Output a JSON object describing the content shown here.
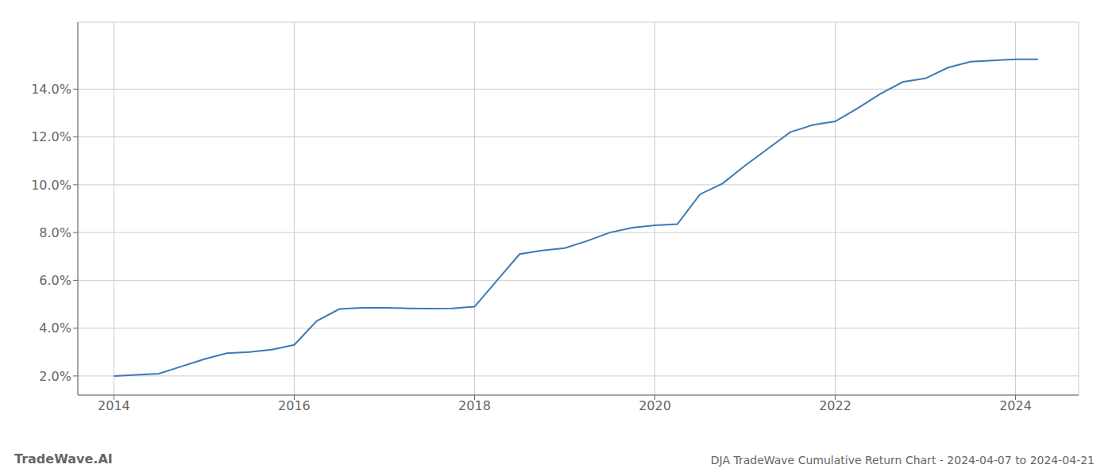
{
  "chart_data": {
    "type": "line",
    "title": "DJA TradeWave Cumulative Return Chart - 2024-04-07 to 2024-04-21",
    "annotations": [
      "TradeWave.AI"
    ],
    "x": [
      2014.0,
      2014.25,
      2014.5,
      2014.75,
      2015.0,
      2015.25,
      2015.5,
      2015.75,
      2016.0,
      2016.25,
      2016.5,
      2016.75,
      2017.0,
      2017.25,
      2017.5,
      2017.75,
      2018.0,
      2018.25,
      2018.5,
      2018.75,
      2019.0,
      2019.25,
      2019.5,
      2019.75,
      2020.0,
      2020.25,
      2020.5,
      2020.75,
      2021.0,
      2021.25,
      2021.5,
      2021.75,
      2022.0,
      2022.25,
      2022.5,
      2022.75,
      2023.0,
      2023.25,
      2023.5,
      2023.75,
      2024.0,
      2024.25
    ],
    "values": [
      2.0,
      2.05,
      2.1,
      2.4,
      2.7,
      2.95,
      3.0,
      3.1,
      3.3,
      4.3,
      4.8,
      4.85,
      4.85,
      4.83,
      4.82,
      4.83,
      4.9,
      6.0,
      7.1,
      7.25,
      7.35,
      7.65,
      8.0,
      8.2,
      8.3,
      8.35,
      9.6,
      10.05,
      10.8,
      11.5,
      12.2,
      12.5,
      12.65,
      13.2,
      13.8,
      14.3,
      14.45,
      14.9,
      15.15,
      15.2,
      15.25,
      15.25
    ],
    "color": "#3d7ab5",
    "xlim": [
      2013.6,
      2024.7
    ],
    "ylim": [
      1.2,
      16.8
    ],
    "xticks": [
      2014,
      2016,
      2018,
      2020,
      2022,
      2024
    ],
    "yticks": [
      {
        "value": 2.0,
        "label": "2.0%"
      },
      {
        "value": 4.0,
        "label": "4.0%"
      },
      {
        "value": 6.0,
        "label": "6.0%"
      },
      {
        "value": 8.0,
        "label": "8.0%"
      },
      {
        "value": 10.0,
        "label": "10.0%"
      },
      {
        "value": 12.0,
        "label": "12.0%"
      },
      {
        "value": 14.0,
        "label": "14.0%"
      }
    ],
    "grid": true
  }
}
